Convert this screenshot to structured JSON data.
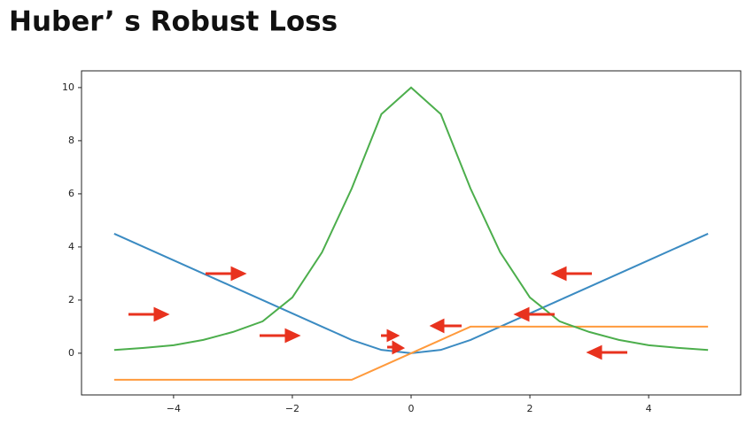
{
  "chart_data": {
    "type": "line",
    "title": "Huber’ s Robust Loss",
    "x": [
      -5,
      -4.5,
      -4,
      -3.5,
      -3,
      -2.5,
      -2,
      -1.5,
      -1,
      -0.5,
      0,
      0.5,
      1,
      1.5,
      2,
      2.5,
      3,
      3.5,
      4,
      4.5,
      5
    ],
    "series": [
      {
        "color": "#3b8bc2",
        "values": [
          4.5,
          4.0,
          3.5,
          3.0,
          2.5,
          2.0,
          1.5,
          1.0,
          0.5,
          0.125,
          0,
          0.125,
          0.5,
          1.0,
          1.5,
          2.0,
          2.5,
          3.0,
          3.5,
          4.0,
          4.5
        ]
      },
      {
        "color": "#ff9a3c",
        "values": [
          -1,
          -1,
          -1,
          -1,
          -1,
          -1,
          -1,
          -1,
          -1,
          -0.5,
          0,
          0.5,
          1,
          1,
          1,
          1,
          1,
          1,
          1,
          1,
          1
        ]
      },
      {
        "color": "#4cae4c",
        "values": [
          0.12,
          0.2,
          0.3,
          0.5,
          0.8,
          1.2,
          2.1,
          3.8,
          6.2,
          9.0,
          10,
          9.0,
          6.2,
          3.8,
          2.1,
          1.2,
          0.8,
          0.5,
          0.3,
          0.2,
          0.12
        ]
      }
    ],
    "xlim": [
      -5.55,
      5.55
    ],
    "ylim": [
      -1.57,
      10.63
    ],
    "xticks": [
      {
        "value": -4,
        "label": "−4"
      },
      {
        "value": -2,
        "label": "−2"
      },
      0,
      2,
      4
    ],
    "yticks": [
      0,
      2,
      4,
      6,
      8,
      10
    ]
  }
}
